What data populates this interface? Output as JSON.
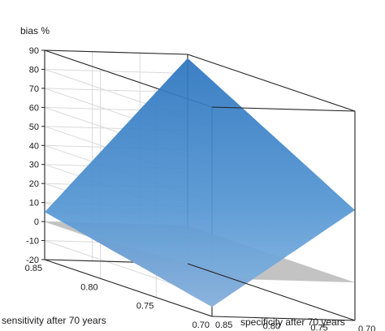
{
  "chart_data": {
    "type": "surface3d",
    "title": "",
    "zlabel": "bias %",
    "xlabel": "specificity after 70 years",
    "ylabel": "sensitivity after 70 years",
    "x_ticks": [
      "0.70",
      "0.75",
      "0.80",
      "0.85"
    ],
    "y_ticks": [
      "0.85",
      "0.80",
      "0.75",
      "0.70"
    ],
    "z_ticks": [
      "-20",
      "-10",
      "0",
      "10",
      "20",
      "30",
      "40",
      "50",
      "60",
      "70",
      "80",
      "90"
    ],
    "xlim": [
      0.7,
      0.85
    ],
    "ylim": [
      0.7,
      0.85
    ],
    "zlim": [
      -20,
      90
    ],
    "corner_values": [
      {
        "specificity": 0.85,
        "sensitivity": 0.85,
        "bias": 5
      },
      {
        "specificity": 0.7,
        "sensitivity": 0.85,
        "bias": 88
      },
      {
        "specificity": 0.7,
        "sensitivity": 0.7,
        "bias": 38
      },
      {
        "specificity": 0.85,
        "sensitivity": 0.7,
        "bias": -15
      }
    ],
    "reference_plane": {
      "bias": 0
    },
    "grid": true,
    "colors": {
      "surface_high": "#2c75bf",
      "surface_low": "#7fb0df",
      "zero_plane": "#bdbdbd",
      "below_zero": "#cf8fa0"
    }
  }
}
